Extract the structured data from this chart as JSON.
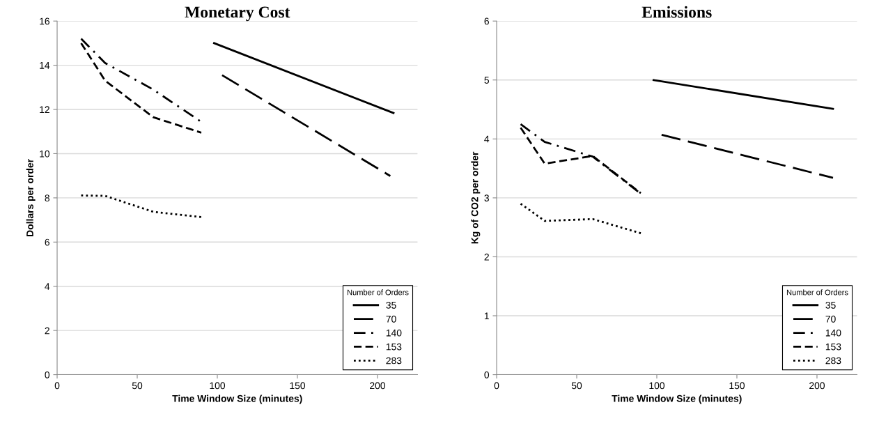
{
  "chart_data": [
    {
      "type": "line",
      "title": "Monetary Cost",
      "xlabel": "Time Window Size (minutes)",
      "ylabel": "Dollars per order",
      "legend_title": "Number of Orders",
      "legend": "bottom right",
      "grid": "y",
      "marker": "none",
      "xlim": [
        0,
        225
      ],
      "xticks": [
        0,
        50,
        100,
        150,
        200
      ],
      "ylim": [
        0,
        16
      ],
      "yticks": [
        0,
        2,
        4,
        6,
        8,
        10,
        12,
        14,
        16
      ],
      "series": [
        {
          "name": "35",
          "color": "#000000",
          "line_style": "solid",
          "x": [
            98,
            210
          ],
          "values": [
            15.0,
            11.84
          ]
        },
        {
          "name": "70",
          "color": "#000000",
          "line_style": "longdash",
          "x": [
            103,
            208
          ],
          "values": [
            13.55,
            8.99
          ]
        },
        {
          "name": "140",
          "color": "#000000",
          "line_style": "dashdot",
          "x": [
            15,
            30,
            60,
            90
          ],
          "values": [
            15.2,
            14.1,
            12.9,
            11.44
          ]
        },
        {
          "name": "153",
          "color": "#000000",
          "line_style": "dashed",
          "x": [
            15,
            30,
            60,
            90
          ],
          "values": [
            15.0,
            13.3,
            11.65,
            10.95
          ]
        },
        {
          "name": "283",
          "color": "#000000",
          "line_style": "dotted",
          "x": [
            15,
            30,
            60,
            90
          ],
          "values": [
            8.11,
            8.09,
            7.37,
            7.13
          ]
        }
      ]
    },
    {
      "type": "line",
      "title": "Emissions",
      "xlabel": "Time Window Size (minutes)",
      "ylabel": "Kg of CO2 per order",
      "legend_title": "Number of Orders",
      "legend": "bottom right",
      "grid": "y",
      "marker": "none",
      "xlim": [
        0,
        225
      ],
      "xticks": [
        0,
        50,
        100,
        150,
        200
      ],
      "ylim": [
        0,
        6
      ],
      "yticks": [
        0,
        1,
        2,
        3,
        4,
        5,
        6
      ],
      "series": [
        {
          "name": "35",
          "color": "#000000",
          "line_style": "solid",
          "x": [
            98,
            210
          ],
          "values": [
            5.0,
            4.51
          ]
        },
        {
          "name": "70",
          "color": "#000000",
          "line_style": "longdash",
          "x": [
            103,
            210
          ],
          "values": [
            4.07,
            3.34
          ]
        },
        {
          "name": "140",
          "color": "#000000",
          "line_style": "dashdot",
          "x": [
            15,
            30,
            60,
            90
          ],
          "values": [
            4.25,
            3.95,
            3.7,
            3.07
          ]
        },
        {
          "name": "153",
          "color": "#000000",
          "line_style": "dashed",
          "x": [
            15,
            30,
            60,
            90
          ],
          "values": [
            4.19,
            3.58,
            3.71,
            3.08
          ]
        },
        {
          "name": "283",
          "color": "#000000",
          "line_style": "dotted",
          "x": [
            15,
            30,
            60,
            90
          ],
          "values": [
            2.9,
            2.61,
            2.64,
            2.4
          ]
        }
      ]
    }
  ]
}
